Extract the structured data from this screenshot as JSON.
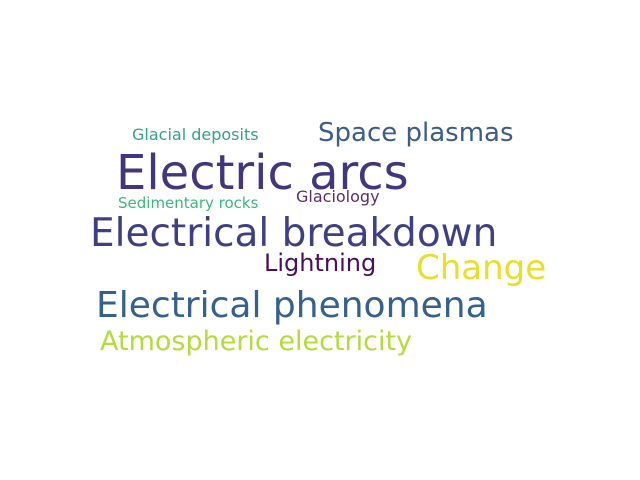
{
  "words": [
    {
      "text": "Glacial deposits",
      "color": "#35a08c"
    },
    {
      "text": "Space plasmas",
      "color": "#3b5c8c"
    },
    {
      "text": "Electric arcs",
      "color": "#42367e"
    },
    {
      "text": "Sedimentary rocks",
      "color": "#3db67d"
    },
    {
      "text": "Glaciology",
      "color": "#5a2d6e"
    },
    {
      "text": "Electrical breakdown",
      "color": "#3f3f84"
    },
    {
      "text": "Lightning",
      "color": "#4a0f5c"
    },
    {
      "text": "Change",
      "color": "#e8df2a"
    },
    {
      "text": "Electrical phenomena",
      "color": "#36618f"
    },
    {
      "text": "Atmospheric electricity",
      "color": "#b5dc3c"
    }
  ]
}
